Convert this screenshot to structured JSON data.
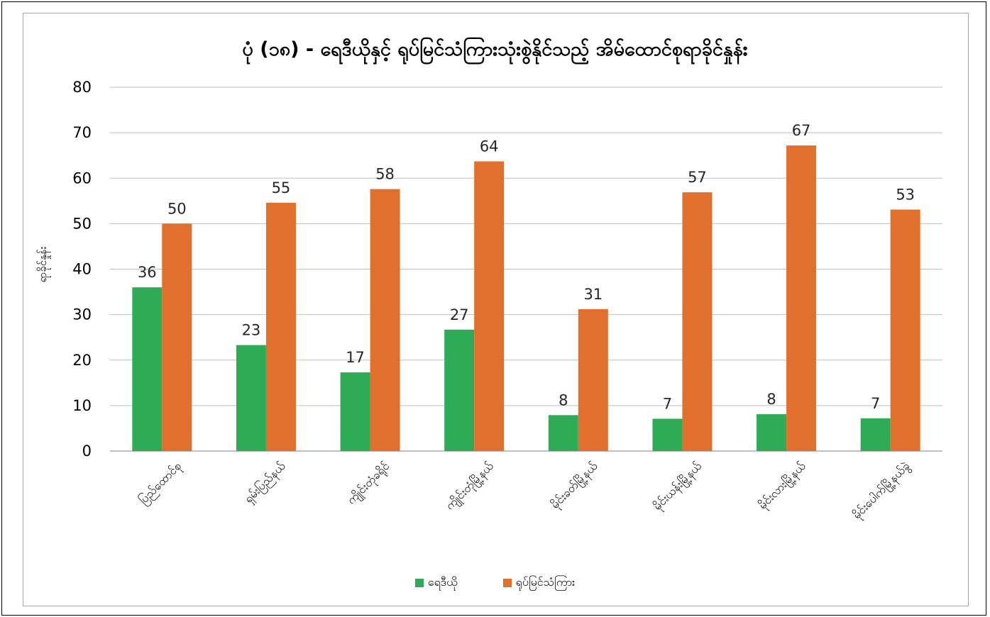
{
  "chart_data": {
    "type": "bar",
    "title": "ပုံ (၁၈) - ရေဒီယိုနှင့် ရုပ်မြင်သံကြားသုံးစွဲနိုင်သည့် အိမ်ထောင်စုရာခိုင်နှုန်း",
    "xlabel": "",
    "ylabel": "ရာခိုင်နှုန်း",
    "ylim": [
      0,
      80
    ],
    "yticks": [
      0,
      10,
      20,
      30,
      40,
      50,
      60,
      70,
      80
    ],
    "grid": true,
    "legend_position": "bottom",
    "categories": [
      "ပြည်ထောင်စု",
      "ရှမ်းပြည်နယ်",
      "ကျိုင်းတုံခရိုင်",
      "ကျိုင်းတုံမြို့နယ်",
      "မိုင်းခတ်မြို့နယ်",
      "မိုင်းယန်းမြို့နယ်",
      "မိုင်းလားမြို့နယ်",
      "မိုင်းပေါက်မြို့နယ်ခွဲ"
    ],
    "series": [
      {
        "name": "ရေဒီယို",
        "color": "#2eac55",
        "values": [
          36,
          23.3,
          17.3,
          26.7,
          7.9,
          7.1,
          8.1,
          7.2
        ],
        "labels": [
          "36",
          "23",
          "17",
          "27",
          "8",
          "7",
          "8",
          "7"
        ]
      },
      {
        "name": "ရုပ်မြင်သံကြား",
        "color": "#e0702c",
        "values": [
          50,
          54.6,
          57.6,
          63.7,
          31.2,
          56.9,
          67.2,
          53.1
        ],
        "labels": [
          "50",
          "55",
          "58",
          "64",
          "31",
          "57",
          "67",
          "53"
        ]
      }
    ]
  }
}
